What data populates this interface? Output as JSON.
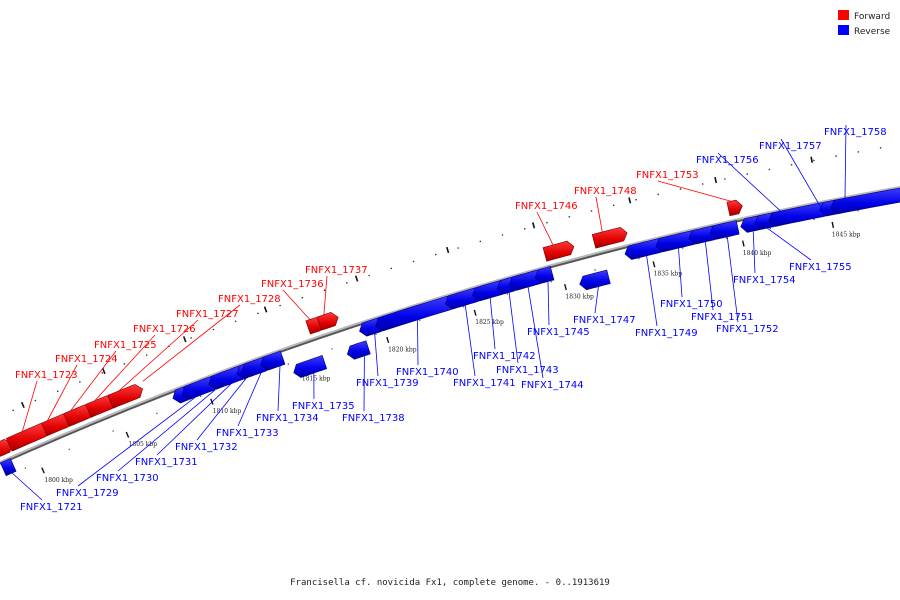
{
  "legend": {
    "forward_label": "Forward",
    "reverse_label": "Reverse",
    "forward_color": "#ff0000",
    "reverse_color": "#0000ff"
  },
  "caption": "Francisella cf. novicida Fx1, complete genome. - 0..1913619",
  "axis_ticks": [
    "1800 kbp",
    "1805 kbp",
    "1810 kbp",
    "1815 kbp",
    "1820 kbp",
    "1825 kbp",
    "1830 kbp",
    "1835 kbp",
    "1840 kbp",
    "1845 kbp"
  ],
  "genes": [
    {
      "label": "FNFX1_1721",
      "strand": "reverse"
    },
    {
      "label": "FNFX1_1723",
      "strand": "forward"
    },
    {
      "label": "FNFX1_1724",
      "strand": "forward"
    },
    {
      "label": "FNFX1_1725",
      "strand": "forward"
    },
    {
      "label": "FNFX1_1726",
      "strand": "forward"
    },
    {
      "label": "FNFX1_1727",
      "strand": "forward"
    },
    {
      "label": "FNFX1_1728",
      "strand": "forward"
    },
    {
      "label": "FNFX1_1729",
      "strand": "reverse"
    },
    {
      "label": "FNFX1_1730",
      "strand": "reverse"
    },
    {
      "label": "FNFX1_1731",
      "strand": "reverse"
    },
    {
      "label": "FNFX1_1732",
      "strand": "reverse"
    },
    {
      "label": "FNFX1_1733",
      "strand": "reverse"
    },
    {
      "label": "FNFX1_1734",
      "strand": "reverse"
    },
    {
      "label": "FNFX1_1735",
      "strand": "reverse"
    },
    {
      "label": "FNFX1_1736",
      "strand": "forward"
    },
    {
      "label": "FNFX1_1737",
      "strand": "forward"
    },
    {
      "label": "FNFX1_1738",
      "strand": "reverse"
    },
    {
      "label": "FNFX1_1739",
      "strand": "reverse"
    },
    {
      "label": "FNFX1_1740",
      "strand": "reverse"
    },
    {
      "label": "FNFX1_1741",
      "strand": "reverse"
    },
    {
      "label": "FNFX1_1742",
      "strand": "reverse"
    },
    {
      "label": "FNFX1_1743",
      "strand": "reverse"
    },
    {
      "label": "FNFX1_1744",
      "strand": "reverse"
    },
    {
      "label": "FNFX1_1745",
      "strand": "reverse"
    },
    {
      "label": "FNFX1_1746",
      "strand": "forward"
    },
    {
      "label": "FNFX1_1747",
      "strand": "reverse"
    },
    {
      "label": "FNFX1_1748",
      "strand": "forward"
    },
    {
      "label": "FNFX1_1749",
      "strand": "reverse"
    },
    {
      "label": "FNFX1_1750",
      "strand": "reverse"
    },
    {
      "label": "FNFX1_1751",
      "strand": "reverse"
    },
    {
      "label": "FNFX1_1752",
      "strand": "reverse"
    },
    {
      "label": "FNFX1_1753",
      "strand": "forward"
    },
    {
      "label": "FNFX1_1754",
      "strand": "reverse"
    },
    {
      "label": "FNFX1_1755",
      "strand": "reverse"
    },
    {
      "label": "FNFX1_1756",
      "strand": "reverse"
    },
    {
      "label": "FNFX1_1757",
      "strand": "reverse"
    },
    {
      "label": "FNFX1_1758",
      "strand": "reverse"
    }
  ]
}
